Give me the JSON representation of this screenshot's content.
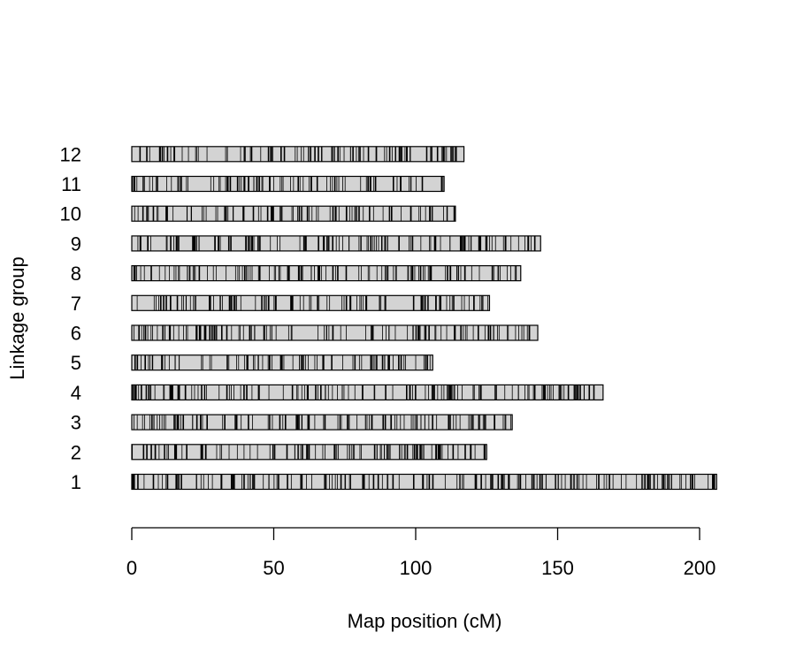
{
  "chart_data": {
    "type": "linkage_map",
    "title": "",
    "xlabel": "Map position (cM)",
    "ylabel": "Linkage group",
    "xlim": [
      0,
      205
    ],
    "x_ticks": [
      0,
      50,
      100,
      150,
      200
    ],
    "x_tick_labels": [
      "0",
      "50",
      "100",
      "150",
      "200"
    ],
    "bar_fill": "#d3d3d3",
    "marker_color": "#000000",
    "groups": [
      {
        "label": "1",
        "length": 206
      },
      {
        "label": "2",
        "length": 125
      },
      {
        "label": "3",
        "length": 134
      },
      {
        "label": "4",
        "length": 166
      },
      {
        "label": "5",
        "length": 106
      },
      {
        "label": "6",
        "length": 143
      },
      {
        "label": "7",
        "length": 126
      },
      {
        "label": "8",
        "length": 137
      },
      {
        "label": "9",
        "length": 144
      },
      {
        "label": "10",
        "length": 114
      },
      {
        "label": "11",
        "length": 110
      },
      {
        "label": "12",
        "length": 117
      }
    ]
  }
}
